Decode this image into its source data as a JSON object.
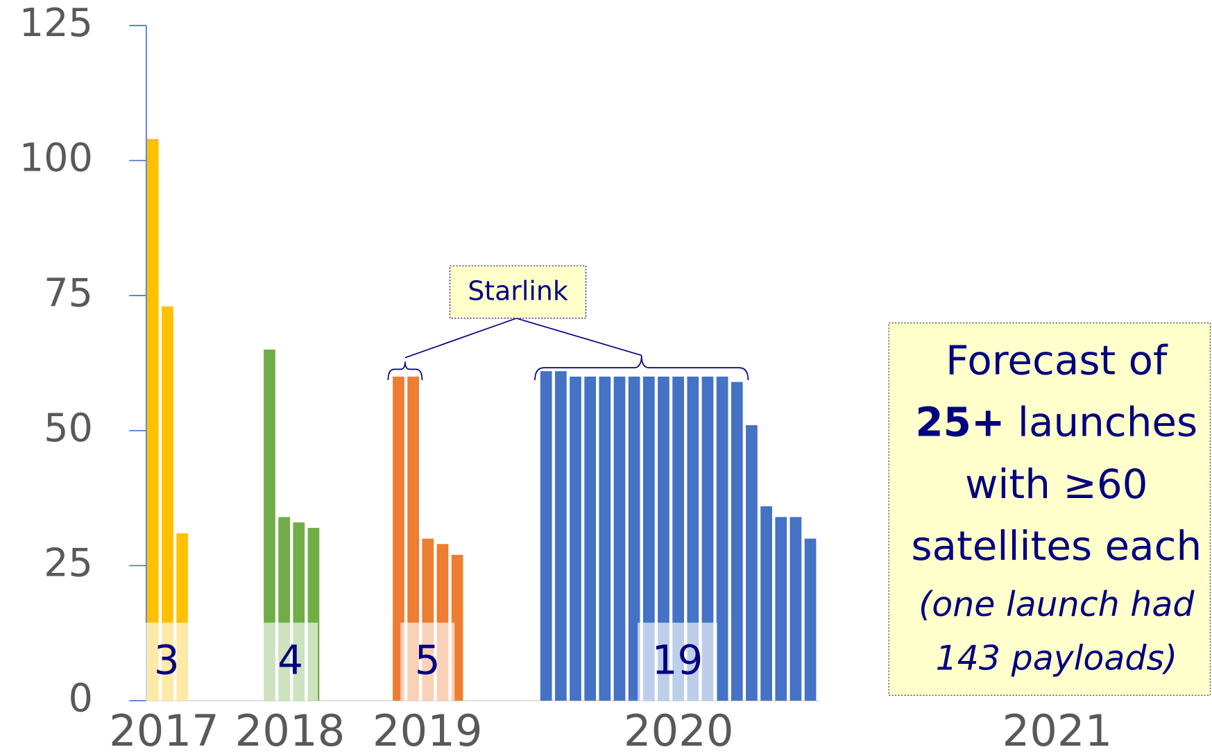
{
  "chart_data": {
    "type": "bar",
    "ylim": [
      0,
      125
    ],
    "yticks": [
      0,
      25,
      50,
      75,
      100,
      125
    ],
    "groups": [
      {
        "label": "2017",
        "color": "#ffc000",
        "count": 3,
        "values": [
          104,
          73,
          31
        ]
      },
      {
        "label": "2018",
        "color": "#70ad47",
        "count": 4,
        "values": [
          65,
          34,
          33,
          32
        ]
      },
      {
        "label": "2019",
        "color": "#ed7d31",
        "count": 5,
        "values": [
          60,
          60,
          30,
          29,
          27
        ]
      },
      {
        "label": "2020",
        "color": "#4472c4",
        "count": 19,
        "values": [
          61,
          61,
          60,
          60,
          60,
          60,
          60,
          60,
          60,
          60,
          60,
          60,
          60,
          59,
          51,
          36,
          34,
          34,
          30
        ]
      },
      {
        "label": "2021",
        "color": "#4472c4",
        "values": []
      }
    ],
    "callout": "Starlink",
    "forecast": {
      "line1": "Forecast of",
      "bold": "25+",
      "line2": " launches",
      "line3": "with ≥60",
      "line4": "satellites each",
      "note1": "(one launch had",
      "note2": "143 payloads)"
    }
  }
}
